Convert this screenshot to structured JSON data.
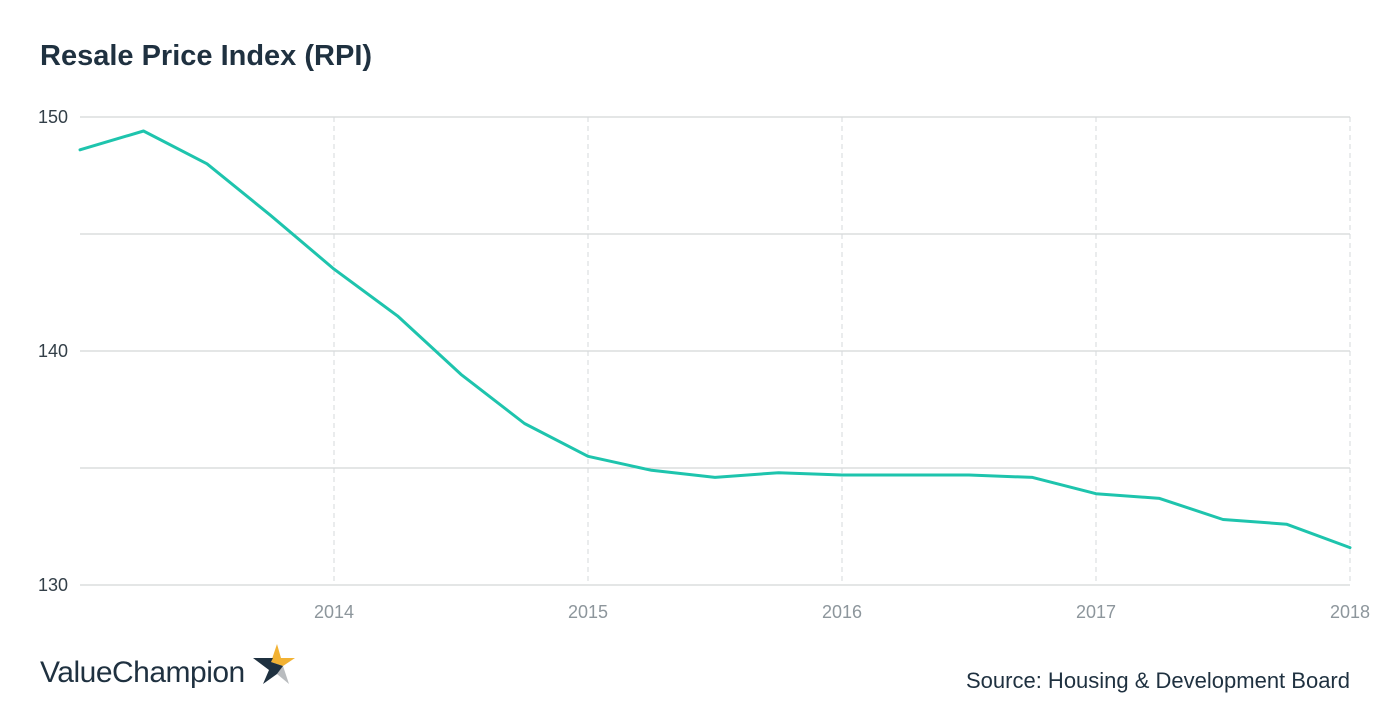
{
  "page": {
    "title": "Resale Price Index (RPI)",
    "brand": "ValueChampion",
    "brand_icon": "star-icon",
    "source": "Source: Housing & Development Board",
    "colors": {
      "line": "#1ec4ad",
      "title": "#1f3140",
      "gridline": "#c8ccce",
      "star_gold": "#f2b233",
      "star_grey": "#b9bcbf",
      "star_navy": "#1f3140"
    }
  },
  "chart_data": {
    "type": "line",
    "title": "Resale Price Index (RPI)",
    "xlabel": "",
    "ylabel": "",
    "xlim": [
      2013.0,
      2018.0
    ],
    "ylim": [
      130,
      150
    ],
    "yticks": [
      130,
      140,
      150
    ],
    "ygrid": [
      130,
      135,
      140,
      145,
      150
    ],
    "xticks": [
      2014,
      2015,
      2016,
      2017,
      2018
    ],
    "x_tick_labels": [
      "2014",
      "2015",
      "2016",
      "2017",
      "2018"
    ],
    "grid": true,
    "legend": "none",
    "series": [
      {
        "x": [
          2013.0,
          2013.25,
          2013.5,
          2013.75,
          2014.0,
          2014.25,
          2014.5,
          2014.75,
          2015.0,
          2015.25,
          2015.5,
          2015.75,
          2016.0,
          2016.25,
          2016.5,
          2016.75,
          2017.0,
          2017.25,
          2017.5,
          2017.75,
          2018.0
        ],
        "values": [
          148.6,
          149.4,
          148.0,
          145.8,
          143.5,
          141.5,
          139.0,
          136.9,
          135.5,
          134.9,
          134.6,
          134.8,
          134.7,
          134.7,
          134.7,
          134.6,
          133.9,
          133.7,
          132.8,
          132.6,
          131.6
        ]
      }
    ]
  }
}
